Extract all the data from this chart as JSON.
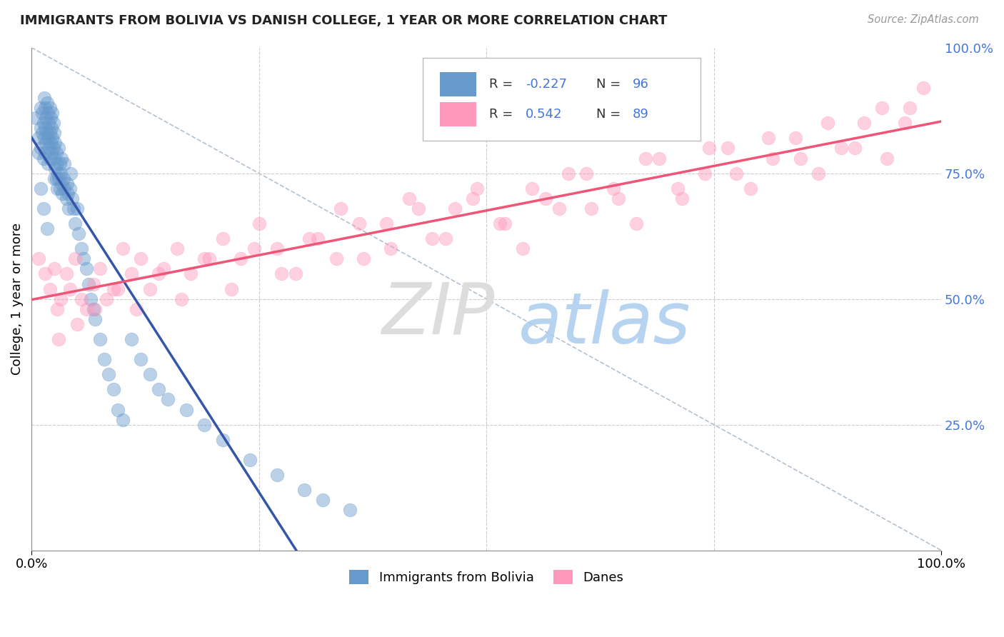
{
  "title": "IMMIGRANTS FROM BOLIVIA VS DANISH COLLEGE, 1 YEAR OR MORE CORRELATION CHART",
  "source_text": "Source: ZipAtlas.com",
  "ylabel": "College, 1 year or more",
  "blue_color": "#6699CC",
  "pink_color": "#FF99BB",
  "blue_line_color": "#3355AA",
  "pink_line_color": "#EE5577",
  "ref_line_color": "#AABBCC",
  "grid_color": "#CCCCCC",
  "right_axis_color": "#4477DD",
  "legend_label_blue": "Immigrants from Bolivia",
  "legend_label_pink": "Danes",
  "blue_R": -0.227,
  "blue_N": 96,
  "pink_R": 0.542,
  "pink_N": 89,
  "blue_scatter_x": [
    0.005,
    0.008,
    0.008,
    0.01,
    0.01,
    0.01,
    0.012,
    0.012,
    0.013,
    0.013,
    0.014,
    0.014,
    0.015,
    0.015,
    0.015,
    0.016,
    0.016,
    0.017,
    0.017,
    0.018,
    0.018,
    0.018,
    0.019,
    0.019,
    0.02,
    0.02,
    0.02,
    0.021,
    0.021,
    0.022,
    0.022,
    0.023,
    0.023,
    0.024,
    0.024,
    0.025,
    0.025,
    0.025,
    0.026,
    0.026,
    0.027,
    0.027,
    0.028,
    0.028,
    0.029,
    0.03,
    0.03,
    0.031,
    0.031,
    0.032,
    0.033,
    0.033,
    0.034,
    0.035,
    0.036,
    0.036,
    0.038,
    0.039,
    0.04,
    0.041,
    0.042,
    0.043,
    0.045,
    0.046,
    0.048,
    0.05,
    0.052,
    0.055,
    0.057,
    0.06,
    0.063,
    0.065,
    0.068,
    0.07,
    0.075,
    0.08,
    0.085,
    0.09,
    0.095,
    0.1,
    0.11,
    0.12,
    0.13,
    0.14,
    0.15,
    0.17,
    0.19,
    0.21,
    0.24,
    0.27,
    0.3,
    0.32,
    0.35,
    0.01,
    0.013,
    0.017
  ],
  "blue_scatter_y": [
    0.86,
    0.82,
    0.79,
    0.88,
    0.84,
    0.8,
    0.87,
    0.83,
    0.85,
    0.78,
    0.9,
    0.82,
    0.88,
    0.84,
    0.79,
    0.86,
    0.81,
    0.89,
    0.83,
    0.87,
    0.82,
    0.77,
    0.85,
    0.8,
    0.88,
    0.83,
    0.78,
    0.86,
    0.81,
    0.84,
    0.79,
    0.87,
    0.82,
    0.85,
    0.8,
    0.83,
    0.78,
    0.74,
    0.81,
    0.76,
    0.79,
    0.74,
    0.77,
    0.72,
    0.75,
    0.8,
    0.74,
    0.77,
    0.72,
    0.75,
    0.78,
    0.73,
    0.71,
    0.74,
    0.77,
    0.72,
    0.7,
    0.73,
    0.71,
    0.68,
    0.72,
    0.75,
    0.7,
    0.68,
    0.65,
    0.68,
    0.63,
    0.6,
    0.58,
    0.56,
    0.53,
    0.5,
    0.48,
    0.46,
    0.42,
    0.38,
    0.35,
    0.32,
    0.28,
    0.26,
    0.42,
    0.38,
    0.35,
    0.32,
    0.3,
    0.28,
    0.25,
    0.22,
    0.18,
    0.15,
    0.12,
    0.1,
    0.08,
    0.72,
    0.68,
    0.64
  ],
  "pink_scatter_x": [
    0.008,
    0.015,
    0.02,
    0.025,
    0.028,
    0.032,
    0.038,
    0.042,
    0.048,
    0.055,
    0.06,
    0.068,
    0.075,
    0.082,
    0.09,
    0.1,
    0.11,
    0.12,
    0.13,
    0.145,
    0.16,
    0.175,
    0.19,
    0.21,
    0.23,
    0.25,
    0.27,
    0.29,
    0.315,
    0.34,
    0.365,
    0.39,
    0.415,
    0.44,
    0.465,
    0.49,
    0.515,
    0.54,
    0.565,
    0.59,
    0.615,
    0.64,
    0.665,
    0.69,
    0.715,
    0.74,
    0.765,
    0.79,
    0.815,
    0.84,
    0.865,
    0.89,
    0.915,
    0.94,
    0.965,
    0.98,
    0.03,
    0.05,
    0.07,
    0.095,
    0.115,
    0.14,
    0.165,
    0.195,
    0.22,
    0.245,
    0.275,
    0.305,
    0.335,
    0.36,
    0.395,
    0.425,
    0.455,
    0.485,
    0.52,
    0.55,
    0.58,
    0.61,
    0.645,
    0.675,
    0.71,
    0.745,
    0.775,
    0.81,
    0.845,
    0.875,
    0.905,
    0.935,
    0.96
  ],
  "pink_scatter_y": [
    0.58,
    0.55,
    0.52,
    0.56,
    0.48,
    0.5,
    0.55,
    0.52,
    0.58,
    0.5,
    0.48,
    0.53,
    0.56,
    0.5,
    0.52,
    0.6,
    0.55,
    0.58,
    0.52,
    0.56,
    0.6,
    0.55,
    0.58,
    0.62,
    0.58,
    0.65,
    0.6,
    0.55,
    0.62,
    0.68,
    0.58,
    0.65,
    0.7,
    0.62,
    0.68,
    0.72,
    0.65,
    0.6,
    0.7,
    0.75,
    0.68,
    0.72,
    0.65,
    0.78,
    0.7,
    0.75,
    0.8,
    0.72,
    0.78,
    0.82,
    0.75,
    0.8,
    0.85,
    0.78,
    0.88,
    0.92,
    0.42,
    0.45,
    0.48,
    0.52,
    0.48,
    0.55,
    0.5,
    0.58,
    0.52,
    0.6,
    0.55,
    0.62,
    0.58,
    0.65,
    0.6,
    0.68,
    0.62,
    0.7,
    0.65,
    0.72,
    0.68,
    0.75,
    0.7,
    0.78,
    0.72,
    0.8,
    0.75,
    0.82,
    0.78,
    0.85,
    0.8,
    0.88,
    0.85
  ]
}
